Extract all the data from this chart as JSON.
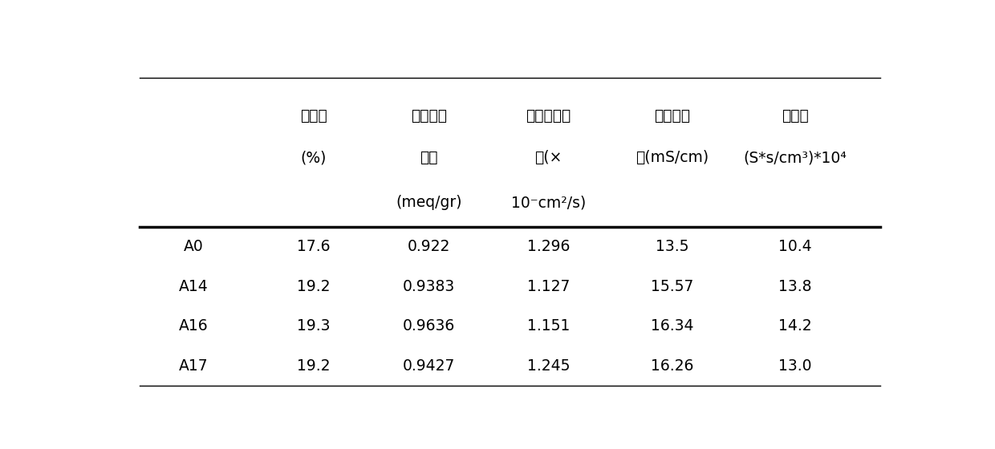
{
  "row_labels": [
    "A0",
    "A14",
    "A16",
    "A17"
  ],
  "table_data": [
    [
      "17.6",
      "0.922",
      "1.296",
      "13.5",
      "10.4"
    ],
    [
      "19.2",
      "0.9383",
      "1.127",
      "15.57",
      "13.8"
    ],
    [
      "19.3",
      "0.9636",
      "1.151",
      "16.34",
      "14.2"
    ],
    [
      "19.2",
      "0.9427",
      "1.245",
      "16.26",
      "13.0"
    ]
  ],
  "header_line1": [
    "吸水性",
    "离子交换",
    "钒离子渗透",
    "质子传导",
    "选择性"
  ],
  "header_line2": [
    "(%)",
    "容量",
    "率(×",
    "率(mS/cm)",
    "(S*s/cm³)*10⁴"
  ],
  "header_line3": [
    "",
    "(meq/gr)",
    "10⁻cm²/s)",
    "",
    ""
  ],
  "background_color": "#ffffff",
  "text_color": "#000000",
  "font_size": 13.5,
  "header_font_size": 13.5
}
